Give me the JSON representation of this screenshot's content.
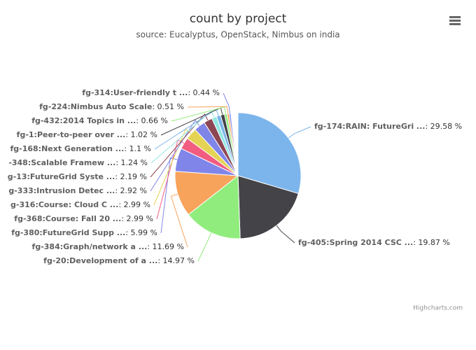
{
  "chart_data": {
    "type": "pie",
    "title": "count by project",
    "subtitle": "source: Eucalyptus, OpenStack, Nimbus on india",
    "credits": "Highcharts.com",
    "categories": [
      "fg-174:RAIN: FutureGri ...",
      "fg-405:Spring 2014 CSC ...",
      "fg-20:Development of a ...",
      "fg-384:Graph/network a ...",
      "fg-380:FutureGrid Supp ...",
      "fg-368:Course: Fall 20 ...",
      "g-316:Course: Cloud C ...",
      "g-333:Intrusion Detec ...",
      "g-13:FutureGrid Syste ...",
      "-348:Scalable Framew ...",
      "fg-168:Next Generation ...",
      "fg-1:Peer-to-peer over ...",
      "fg-432:2014 Topics in ...",
      "fg-224:Nimbus Auto Scale",
      "fg-314:User-friendly t ..."
    ],
    "values": [
      29.58,
      19.87,
      14.97,
      11.69,
      5.99,
      2.99,
      2.99,
      2.92,
      2.19,
      1.24,
      1.1,
      1.02,
      0.66,
      0.51,
      0.44
    ],
    "value_labels": [
      ": 29.58 %",
      ": 19.87 %",
      ": 14.97 %",
      ": 11.69 %",
      ": 5.99 %",
      ": 2.99 %",
      ": 2.99 %",
      ": 2.92 %",
      ": 2.19 %",
      ": 1.24 %",
      ": 1.1 %",
      ": 1.02 %",
      ": 0.66 %",
      ": 0.51 %",
      ": 0.44 %"
    ],
    "colors": [
      "#7cb5ec",
      "#434348",
      "#90ed7d",
      "#f7a35c",
      "#8085e9",
      "#f15c80",
      "#e4d354",
      "#8085e8",
      "#8d4653",
      "#91e8e1",
      "#7cb5ec",
      "#434348",
      "#90ed7d",
      "#f7a35c",
      "#8085e9"
    ]
  }
}
